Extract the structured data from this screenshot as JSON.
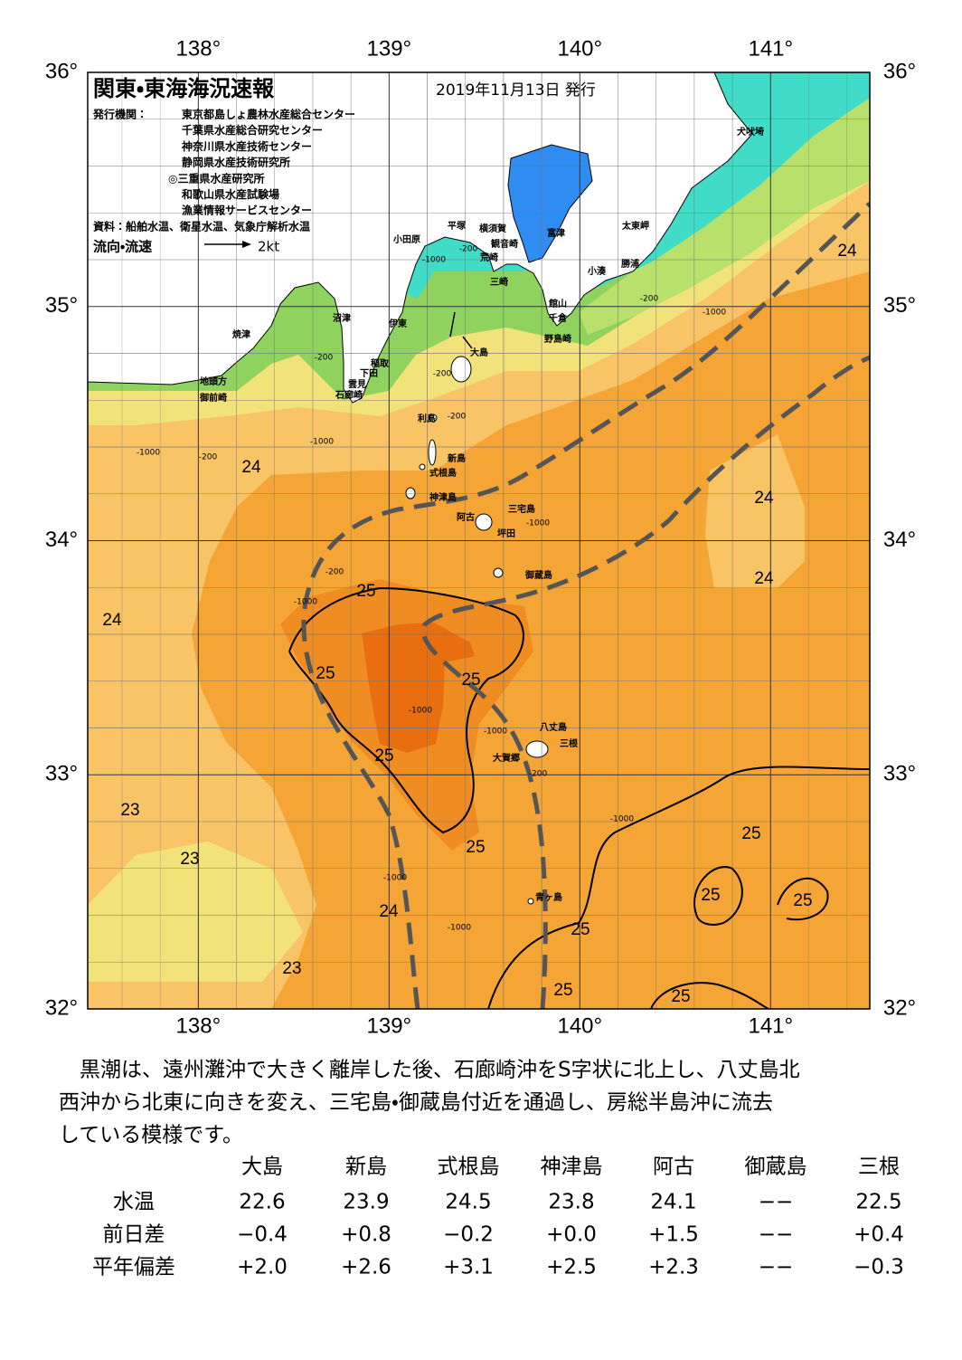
{
  "header": {
    "title": "関東・東海海況速報",
    "date": "2019年11月13日 発行",
    "issuer_label": "発行機関：",
    "issuers": [
      "東京都島しょ農林水産総合センター",
      "千葉県水産総合研究センター",
      "神奈川県水産技術センター",
      "静岡県水産技術研究所",
      "◎三重県水産研究所",
      "和歌山県水産試験場",
      "漁業情報サービスセンター"
    ],
    "source": "資料：船舶水温、衛星水温、気象庁解析水温",
    "current_label": "流向・流速",
    "current_scale": "2kt"
  },
  "map": {
    "lonlim": [
      137.42,
      141.52
    ],
    "latlim": [
      32,
      36
    ],
    "lon_ticks": [
      {
        "value": 138,
        "label": "138°"
      },
      {
        "value": 139,
        "label": "139°"
      },
      {
        "value": 140,
        "label": "140°"
      },
      {
        "value": 141,
        "label": "141°"
      }
    ],
    "lat_ticks": [
      {
        "value": 36,
        "label": "36°"
      },
      {
        "value": 35,
        "label": "35°"
      },
      {
        "value": 34,
        "label": "34°"
      },
      {
        "value": 33,
        "label": "33°"
      },
      {
        "value": 32,
        "label": "32°"
      }
    ],
    "places": [
      "犬吠埼",
      "太東岬",
      "勝浦",
      "小湊",
      "富津",
      "横須賀",
      "観音崎",
      "平塚",
      "小田原",
      "荒崎",
      "三崎",
      "館山",
      "千倉",
      "野島崎",
      "沼津",
      "伊東",
      "焼津",
      "大島",
      "稲取",
      "下田",
      "雲見",
      "石廊崎",
      "地頭方",
      "御前崎",
      "利島",
      "新島",
      "式根島",
      "神津島",
      "三宅島",
      "阿古",
      "坪田",
      "御蔵島",
      "八丈島",
      "三根",
      "大賀郷",
      "青ヶ島"
    ],
    "isotherm_labels": [
      24,
      24,
      24,
      24,
      24,
      24,
      25,
      25,
      25,
      25,
      25,
      25,
      25,
      25,
      25,
      25,
      25,
      23,
      23,
      23
    ],
    "depth_labels": [
      -1000,
      -200,
      -200,
      -200,
      -1000,
      -200,
      -1000,
      -200,
      -1000,
      -200,
      -1000,
      -1000,
      -1000,
      -200,
      -1000,
      -1000,
      -1000,
      -1000,
      -200
    ]
  },
  "summary": [
    "　黒潮は、遠州灘沖で大きく離岸した後、石廊崎沖をS字状に北上し、八丈島北",
    "西沖から北東に向きを変え、三宅島・御蔵島付近を通過し、房総半島沖に流去",
    "している模様です。"
  ],
  "table": {
    "columns": [
      "大島",
      "新島",
      "式根島",
      "神津島",
      "阿古",
      "御蔵島",
      "三根"
    ],
    "rows": [
      {
        "label": "水温",
        "cells": [
          "22.6",
          "23.9",
          "24.5",
          "23.8",
          "24.1",
          "−−",
          "22.5"
        ]
      },
      {
        "label": "前日差",
        "cells": [
          "−0.4",
          "+0.8",
          "−0.2",
          "+0.0",
          "+1.5",
          "−−",
          "+0.4"
        ]
      },
      {
        "label": "平年偏差",
        "cells": [
          "+2.0",
          "+2.6",
          "+3.1",
          "+2.5",
          "+2.3",
          "−−",
          "−0.3"
        ]
      }
    ]
  }
}
